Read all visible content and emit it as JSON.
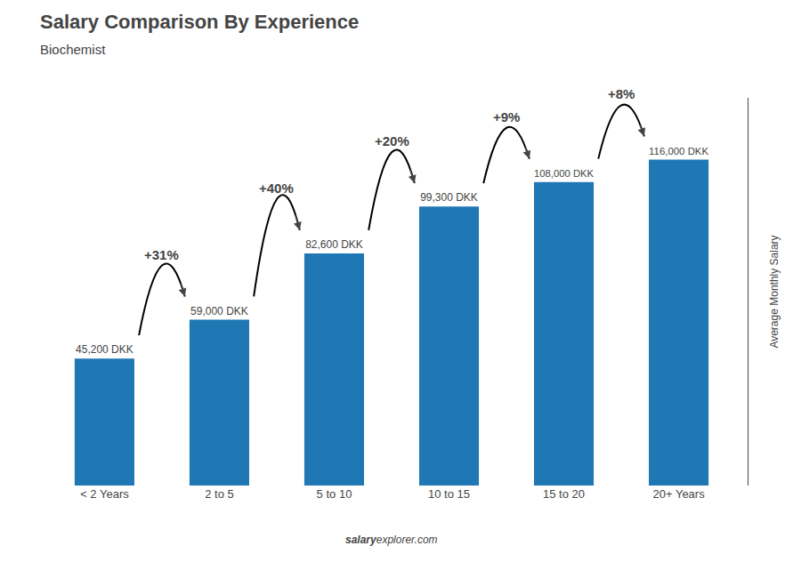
{
  "chart_data": {
    "type": "bar",
    "title": "Salary Comparison By Experience",
    "subtitle": "Biochemist",
    "ylabel": "Average Monthly Salary",
    "categories": [
      "< 2 Years",
      "2 to 5",
      "5 to 10",
      "10 to 15",
      "15 to 20",
      "20+ Years"
    ],
    "values": [
      45200,
      59000,
      82600,
      99300,
      108000,
      116000
    ],
    "value_labels": [
      "45,200 DKK",
      "59,000 DKK",
      "82,600 DKK",
      "99,300 DKK",
      "108,000 DKK",
      "116,000 DKK"
    ],
    "data_labels": true,
    "ylim": [
      0,
      138000
    ],
    "yticks": [],
    "grid": false,
    "tick_labels": "x",
    "annotations": [
      {
        "text": "+31%",
        "from": "< 2 Years",
        "to": "2 to 5"
      },
      {
        "text": "+40%",
        "from": "2 to 5",
        "to": "5 to 10"
      },
      {
        "text": "+20%",
        "from": "5 to 10",
        "to": "10 to 15"
      },
      {
        "text": "+9%",
        "from": "10 to 15",
        "to": "15 to 20"
      },
      {
        "text": "+8%",
        "from": "15 to 20",
        "to": "20+ Years"
      }
    ],
    "watermark": [
      "salary",
      "explorer.com"
    ]
  }
}
